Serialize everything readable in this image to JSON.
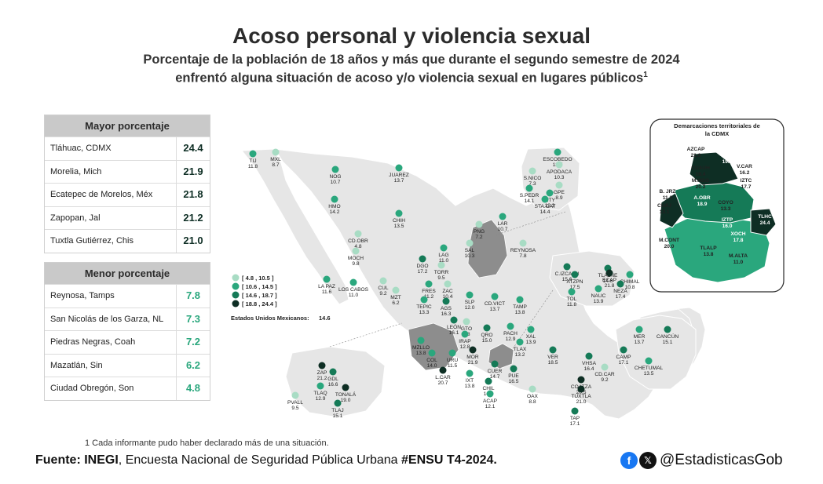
{
  "title": "Acoso personal y violencia sexual",
  "subtitle_line1": "Porcentaje de la población de 18 años y más que durante el segundo semestre de 2024",
  "subtitle_line2": "enfrentó alguna situación de acoso y/o violencia sexual en lugares públicos",
  "subtitle_mark": "1",
  "top_table": {
    "header": "Mayor porcentaje",
    "rows": [
      {
        "name": "Tláhuac, CDMX",
        "value": "24.4"
      },
      {
        "name": "Morelia, Mich",
        "value": "21.9"
      },
      {
        "name": "Ecatepec de Morelos, Méx",
        "value": "21.8"
      },
      {
        "name": "Zapopan, Jal",
        "value": "21.2"
      },
      {
        "name": "Tuxtla Gutiérrez, Chis",
        "value": "21.0"
      }
    ]
  },
  "bottom_table": {
    "header": "Menor porcentaje",
    "rows": [
      {
        "name": "Reynosa, Tamps",
        "value": "7.8"
      },
      {
        "name": "San Nicolás de los Garza, NL",
        "value": "7.3"
      },
      {
        "name": "Piedras Negras, Coah",
        "value": "7.2"
      },
      {
        "name": "Mazatlán, Sin",
        "value": "6.2"
      },
      {
        "name": "Ciudad Obregón, Son",
        "value": "4.8"
      }
    ]
  },
  "legend": {
    "items": [
      {
        "label": "[   4.8 , 10.5 ]",
        "color": "#a8dcc4"
      },
      {
        "label": "[ 10.6 , 14.5 ]",
        "color": "#2aa77d"
      },
      {
        "label": "[ 14.6 , 18.7 ]",
        "color": "#157a57"
      },
      {
        "label": "[ 18.8 , 24.4 ]",
        "color": "#0e2e24"
      }
    ],
    "national_label": "Estados Unidos Mexicanos:",
    "national_value": "14.6"
  },
  "colors": {
    "c1": "#a8dcc4",
    "c2": "#2aa77d",
    "c3": "#157a57",
    "c4": "#0e2e24",
    "land": "#e6e6e6",
    "border": "#ffffff",
    "highlight": "#8d8d8d"
  },
  "cities": [
    {
      "code": "TIJ",
      "value": "11.8"
    },
    {
      "code": "MXL",
      "value": "8.7"
    },
    {
      "code": "NOG",
      "value": "10.7"
    },
    {
      "code": "JUAREZ",
      "value": "13.7"
    },
    {
      "code": "HMO",
      "value": "14.2"
    },
    {
      "code": "CHIH",
      "value": "13.5"
    },
    {
      "code": "CD.OBR",
      "value": "4.8"
    },
    {
      "code": "MOCH",
      "value": "9.8"
    },
    {
      "code": "LA PAZ",
      "value": "11.6"
    },
    {
      "code": "LOS CABOS",
      "value": "11.0"
    },
    {
      "code": "CUL",
      "value": "9.2"
    },
    {
      "code": "MZT",
      "value": "6.2"
    },
    {
      "code": "DGO",
      "value": "17.2"
    },
    {
      "code": "TORR",
      "value": "9.5"
    },
    {
      "code": "LAG",
      "value": "11.0"
    },
    {
      "code": "SAL",
      "value": "10.3"
    },
    {
      "code": "PNG",
      "value": "7.2"
    },
    {
      "code": "LAR",
      "value": "10.7"
    },
    {
      "code": "REYNOSA",
      "value": "7.8"
    },
    {
      "code": "ESCOBEDO",
      "value": "12.7"
    },
    {
      "code": "S.NICO",
      "value": "7.3"
    },
    {
      "code": "APODACA",
      "value": "10.3"
    },
    {
      "code": "GPE",
      "value": "8.9"
    },
    {
      "code": "S.PEDR",
      "value": "14.1"
    },
    {
      "code": "MTY",
      "value": "12.3"
    },
    {
      "code": "STA.CAT",
      "value": "14.4"
    },
    {
      "code": "FRES",
      "value": "11.2"
    },
    {
      "code": "ZAC",
      "value": "10.4"
    },
    {
      "code": "TEPIC",
      "value": "13.3"
    },
    {
      "code": "AGS",
      "value": "16.3"
    },
    {
      "code": "SLP",
      "value": "12.0"
    },
    {
      "code": "CD.VICT",
      "value": "13.7"
    },
    {
      "code": "TAMP",
      "value": "13.8"
    },
    {
      "code": "LEÓN",
      "value": "16.1"
    },
    {
      "code": "GTO",
      "value": "9.8"
    },
    {
      "code": "QRO",
      "value": "15.0"
    },
    {
      "code": "IRAP",
      "value": "12.8"
    },
    {
      "code": "PACH",
      "value": "12.9"
    },
    {
      "code": "XAL",
      "value": "13.9"
    },
    {
      "code": "MZLLO",
      "value": "13.8"
    },
    {
      "code": "COL",
      "value": "14.0"
    },
    {
      "code": "URU",
      "value": "11.5"
    },
    {
      "code": "MOR",
      "value": "21.9"
    },
    {
      "code": "TLAX",
      "value": "13.2"
    },
    {
      "code": "VER",
      "value": "18.5"
    },
    {
      "code": "L.CAR",
      "value": "20.7"
    },
    {
      "code": "IXT",
      "value": "13.8"
    },
    {
      "code": "CUER",
      "value": "14.7"
    },
    {
      "code": "PUE",
      "value": "16.5"
    },
    {
      "code": "CHIL",
      "value": "14.9"
    },
    {
      "code": "ACAP",
      "value": "12.1"
    },
    {
      "code": "OAX",
      "value": "8.8"
    },
    {
      "code": "COATZA",
      "value": "20.5"
    },
    {
      "code": "VHSA",
      "value": "16.4"
    },
    {
      "code": "CD.CAR",
      "value": "9.2"
    },
    {
      "code": "CAMP",
      "value": "17.1"
    },
    {
      "code": "MER",
      "value": "13.7"
    },
    {
      "code": "CANCÚN",
      "value": "15.1"
    },
    {
      "code": "CHETUMAL",
      "value": "13.5"
    },
    {
      "code": "TUXTLA",
      "value": "21.0"
    },
    {
      "code": "TAP",
      "value": "17.1"
    },
    {
      "code": "ZAP",
      "value": "21.2"
    },
    {
      "code": "GDL",
      "value": "16.6"
    },
    {
      "code": "TLAQ",
      "value": "12.9"
    },
    {
      "code": "TONALÁ",
      "value": "19.0"
    },
    {
      "code": "TLAJ",
      "value": "15.1"
    },
    {
      "code": "PVALL",
      "value": "9.5"
    },
    {
      "code": "C.IZCALLI",
      "value": "15.6"
    },
    {
      "code": "ATZPN",
      "value": "17.5"
    },
    {
      "code": "TLALNE",
      "value": "14.8"
    },
    {
      "code": "ECAP",
      "value": "21.8"
    },
    {
      "code": "CHIMAL",
      "value": "10.8"
    },
    {
      "code": "NEZA",
      "value": "17.4"
    },
    {
      "code": "TOL",
      "value": "11.8"
    },
    {
      "code": "NAUC",
      "value": "13.9"
    }
  ],
  "cdmx": {
    "title": "Demarcaciones territoriales de la CDMX",
    "districts": [
      {
        "code": "AZCAP",
        "value": "21.0"
      },
      {
        "code": "GAM",
        "value": "19.0"
      },
      {
        "code": "CUAUH",
        "value": "19.4"
      },
      {
        "code": "V.CAR",
        "value": "16.2"
      },
      {
        "code": "M.HGO",
        "value": "20.2"
      },
      {
        "code": "IZTC",
        "value": "17.7"
      },
      {
        "code": "B. JRZ",
        "value": "11.3"
      },
      {
        "code": "CUAJ",
        "value": "13.1"
      },
      {
        "code": "A.OBR",
        "value": "18.9"
      },
      {
        "code": "COYO",
        "value": "13.3"
      },
      {
        "code": "IZTP",
        "value": "16.0"
      },
      {
        "code": "TLHC",
        "value": "24.4"
      },
      {
        "code": "XOCH",
        "value": "17.8"
      },
      {
        "code": "M.CONT",
        "value": "20.0"
      },
      {
        "code": "TLALP",
        "value": "13.8"
      },
      {
        "code": "M.ALTA",
        "value": "11.0"
      }
    ]
  },
  "footnote": "1 Cada informante pudo haber declarado más de una situación.",
  "source_label": "Fuente:",
  "source_org": "INEGI",
  "source_text": ", Encuesta Nacional de Seguridad Pública Urbana ",
  "source_survey": "#ENSU T4-2024.",
  "social": {
    "fb_icon": "f",
    "x_icon": "𝕏",
    "handle": "@EstadisticasGob"
  }
}
